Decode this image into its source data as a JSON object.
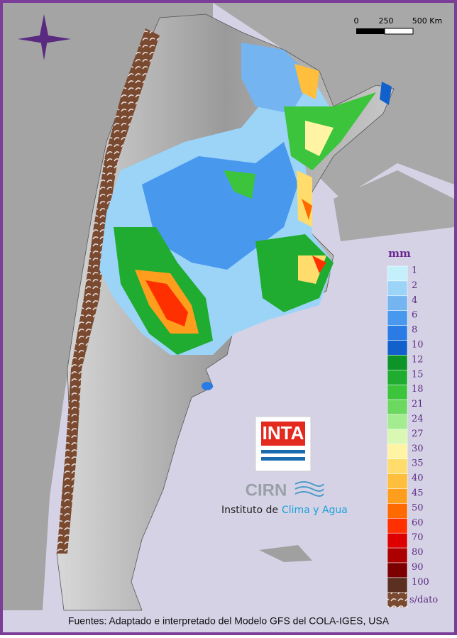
{
  "scale_bar": {
    "labels": [
      "0",
      "250",
      "500 Km"
    ]
  },
  "legend": {
    "title": "mm",
    "items": [
      {
        "label": 1,
        "color": "#c4f0fc"
      },
      {
        "label": 2,
        "color": "#9cd4f8"
      },
      {
        "label": 4,
        "color": "#74b4f0"
      },
      {
        "label": 6,
        "color": "#4898ee"
      },
      {
        "label": 8,
        "color": "#2a7ce4"
      },
      {
        "label": 10,
        "color": "#1260cc"
      },
      {
        "label": 12,
        "color": "#0c9428"
      },
      {
        "label": 15,
        "color": "#20ac30"
      },
      {
        "label": 18,
        "color": "#3cc43c"
      },
      {
        "label": 21,
        "color": "#6cd860"
      },
      {
        "label": 24,
        "color": "#a4ec90"
      },
      {
        "label": 27,
        "color": "#d8f8b4"
      },
      {
        "label": 30,
        "color": "#fff4a4"
      },
      {
        "label": 35,
        "color": "#ffdc6c"
      },
      {
        "label": 40,
        "color": "#ffbe3c"
      },
      {
        "label": 45,
        "color": "#ff9e1c"
      },
      {
        "label": 50,
        "color": "#ff6a00"
      },
      {
        "label": 60,
        "color": "#ff3000"
      },
      {
        "label": 70,
        "color": "#dc0000"
      },
      {
        "label": 80,
        "color": "#ac0000"
      },
      {
        "label": 90,
        "color": "#7c0000"
      },
      {
        "label": 100,
        "color": "#5c3020"
      },
      {
        "label": "s/dato",
        "color": "#7a4a30"
      }
    ]
  },
  "logos": {
    "inta": "INTA",
    "cirn": "CIRN",
    "institute_prefix": "Instituto de",
    "institute_name": "Clima y Agua"
  },
  "footer": "Fuentes: Adaptado e interpretado del Modelo GFS del COLA-IGES, USA"
}
